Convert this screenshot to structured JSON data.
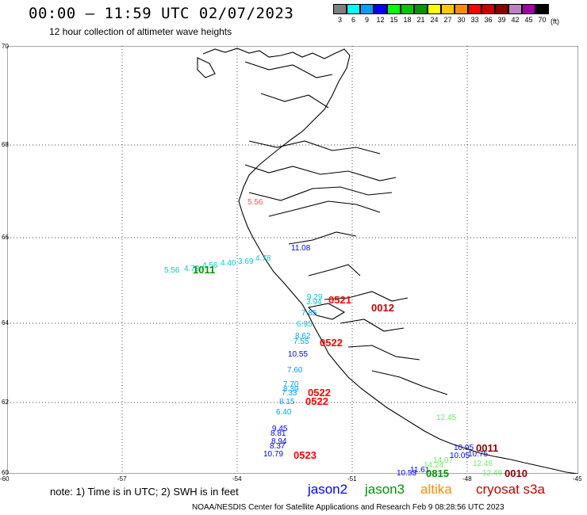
{
  "header": {
    "title": "00:00 – 11:59 UTC 02/07/2023",
    "subtitle": "12 hour collection of altimeter wave heights"
  },
  "scale": {
    "colors": [
      "#808080",
      "#00ffff",
      "#00a0ff",
      "#0000ff",
      "#00ff00",
      "#00c800",
      "#009600",
      "#ffff00",
      "#ffc800",
      "#ff8c00",
      "#ff0000",
      "#c80000",
      "#8b0000",
      "#c080c0",
      "#a000a0",
      "#000000"
    ],
    "labels": [
      "3",
      "6",
      "9",
      "12",
      "15",
      "18",
      "21",
      "24",
      "27",
      "30",
      "33",
      "36",
      "39",
      "42",
      "45",
      "70"
    ],
    "unit": "(ft)"
  },
  "axes": {
    "lat_labels": [
      "70",
      "68",
      "66",
      "64",
      "62",
      "60"
    ],
    "lon_labels": [
      "-60",
      "-57",
      "-54",
      "-51",
      "-48",
      "-45"
    ]
  },
  "tracks": {
    "cyan_track": [
      "5.56",
      "4.78",
      "4.56",
      "4.40",
      "3.69",
      "4.78"
    ],
    "cyan_time": "1011",
    "mid_values": [
      "11.08",
      "9.29",
      "3.94",
      "7.85",
      "6.95",
      "8.62",
      "7.55",
      "10.55",
      "7.60",
      "7.70",
      "8.39",
      "7.33",
      "8.15",
      "6.40"
    ],
    "blue_values": [
      "9.45",
      "8.81",
      "8.94",
      "8.37",
      "10.79"
    ],
    "south_values": [
      "10.53",
      "11.61",
      "14.24",
      "14.07",
      "12.46",
      "12.49",
      "10.75",
      "10.95",
      "10.05"
    ],
    "red_times": [
      "0521",
      "0012",
      "0522",
      "0522",
      "0522",
      "0523",
      "0010",
      "0011"
    ],
    "purple_values": [
      "5.56"
    ],
    "green_time": "0815",
    "green_values": [
      "12.45"
    ]
  },
  "footer": {
    "note": "note:  1) Time is in UTC;  2) SWH is in feet",
    "satellites": [
      {
        "name": "jason2",
        "color": "#0000ff"
      },
      {
        "name": "jason3",
        "color": "#009600"
      },
      {
        "name": "altika",
        "color": "#ff8c00"
      },
      {
        "name": "cryosat s3a",
        "color": "#c80000"
      }
    ],
    "credit": "NOAA/NESDIS Center for Satellite Applications and Research    Feb  9 08:28:56 UTC 2023"
  }
}
